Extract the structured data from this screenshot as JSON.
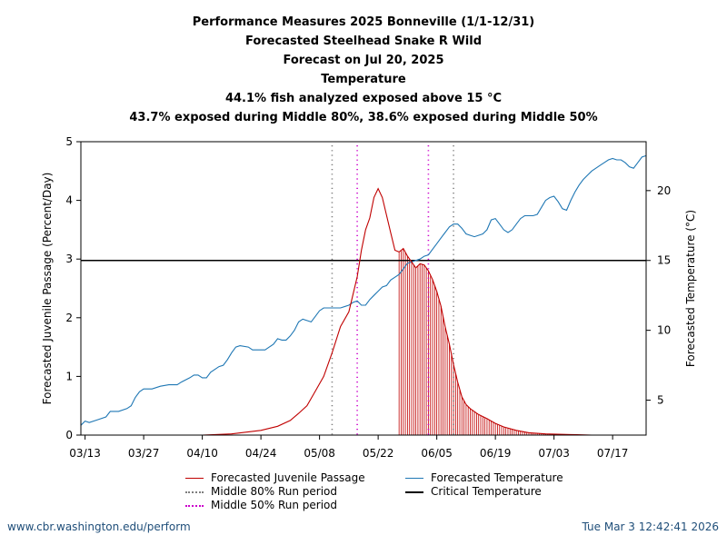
{
  "titles": [
    "Performance Measures 2025 Bonneville (1/1-12/31)",
    "Forecasted Steelhead Snake R Wild",
    "Forecast on Jul 20, 2025",
    "Temperature",
    "44.1% fish analyzed exposed above 15 °C",
    "43.7% exposed during Middle 80%, 38.6% exposed during Middle 50%"
  ],
  "footer": {
    "url": "www.cbr.washington.edu/perform",
    "timestamp": "Tue Mar  3 12:42:41 2026"
  },
  "colors": {
    "passage": "#c00000",
    "temperature": "#1f77b4",
    "middle80": "#7f7f7f",
    "middle50": "#cc00cc",
    "critical": "#000000"
  },
  "chart_data": {
    "type": "line",
    "ylabel": "Forecasted Juvenile Passage (Percent/Day)",
    "y2label": "Forecasted Temperature (°C)",
    "ylim": [
      0,
      5
    ],
    "y2lim": [
      2.5,
      23.5
    ],
    "yticks": [
      0,
      1,
      2,
      3,
      4,
      5
    ],
    "y2ticks": [
      5,
      10,
      15,
      20
    ],
    "xlim": [
      "2025-03-12",
      "2025-07-25"
    ],
    "xticks": [
      "2025-03-13",
      "2025-03-27",
      "2025-04-10",
      "2025-04-24",
      "2025-05-08",
      "2025-05-22",
      "2025-06-05",
      "2025-06-19",
      "2025-07-03",
      "2025-07-17"
    ],
    "xtick_labels": [
      "03/13",
      "03/27",
      "04/10",
      "04/24",
      "05/08",
      "05/22",
      "06/05",
      "06/19",
      "07/03",
      "07/17"
    ],
    "critical_temperature": 15,
    "middle80_run": [
      "2025-05-11",
      "2025-06-09"
    ],
    "middle50_run": [
      "2025-05-17",
      "2025-06-03"
    ],
    "forecast_start": "2025-05-27",
    "series": [
      {
        "name": "Forecasted Juvenile Passage",
        "axis": "left",
        "points": [
          [
            "2025-04-10",
            0.0
          ],
          [
            "2025-04-17",
            0.02
          ],
          [
            "2025-04-24",
            0.08
          ],
          [
            "2025-04-28",
            0.15
          ],
          [
            "2025-05-01",
            0.25
          ],
          [
            "2025-05-03",
            0.37
          ],
          [
            "2025-05-05",
            0.5
          ],
          [
            "2025-05-07",
            0.75
          ],
          [
            "2025-05-09",
            1.0
          ],
          [
            "2025-05-11",
            1.4
          ],
          [
            "2025-05-13",
            1.85
          ],
          [
            "2025-05-15",
            2.1
          ],
          [
            "2025-05-17",
            2.7
          ],
          [
            "2025-05-18",
            3.15
          ],
          [
            "2025-05-19",
            3.5
          ],
          [
            "2025-05-20",
            3.7
          ],
          [
            "2025-05-21",
            4.05
          ],
          [
            "2025-05-22",
            4.2
          ],
          [
            "2025-05-23",
            4.05
          ],
          [
            "2025-05-25",
            3.45
          ],
          [
            "2025-05-26",
            3.15
          ],
          [
            "2025-05-27",
            3.12
          ],
          [
            "2025-05-28",
            3.18
          ],
          [
            "2025-05-29",
            3.05
          ],
          [
            "2025-05-30",
            2.95
          ],
          [
            "2025-05-31",
            2.85
          ],
          [
            "2025-06-01",
            2.92
          ],
          [
            "2025-06-02",
            2.9
          ],
          [
            "2025-06-03",
            2.8
          ],
          [
            "2025-06-04",
            2.65
          ],
          [
            "2025-06-05",
            2.45
          ],
          [
            "2025-06-06",
            2.2
          ],
          [
            "2025-06-07",
            1.85
          ],
          [
            "2025-06-08",
            1.55
          ],
          [
            "2025-06-09",
            1.2
          ],
          [
            "2025-06-10",
            0.9
          ],
          [
            "2025-06-11",
            0.65
          ],
          [
            "2025-06-12",
            0.52
          ],
          [
            "2025-06-13",
            0.45
          ],
          [
            "2025-06-15",
            0.35
          ],
          [
            "2025-06-17",
            0.28
          ],
          [
            "2025-06-19",
            0.2
          ],
          [
            "2025-06-21",
            0.14
          ],
          [
            "2025-06-24",
            0.08
          ],
          [
            "2025-06-27",
            0.04
          ],
          [
            "2025-07-01",
            0.02
          ],
          [
            "2025-07-07",
            0.01
          ],
          [
            "2025-07-12",
            0.0
          ]
        ]
      },
      {
        "name": "Forecasted Temperature",
        "axis": "right",
        "points": [
          [
            "2025-03-12",
            3.2
          ],
          [
            "2025-03-13",
            3.5
          ],
          [
            "2025-03-14",
            3.4
          ],
          [
            "2025-03-16",
            3.6
          ],
          [
            "2025-03-18",
            3.8
          ],
          [
            "2025-03-19",
            4.2
          ],
          [
            "2025-03-21",
            4.2
          ],
          [
            "2025-03-23",
            4.4
          ],
          [
            "2025-03-24",
            4.6
          ],
          [
            "2025-03-25",
            5.2
          ],
          [
            "2025-03-26",
            5.6
          ],
          [
            "2025-03-27",
            5.8
          ],
          [
            "2025-03-29",
            5.8
          ],
          [
            "2025-03-31",
            6.0
          ],
          [
            "2025-04-02",
            6.1
          ],
          [
            "2025-04-04",
            6.1
          ],
          [
            "2025-04-05",
            6.3
          ],
          [
            "2025-04-07",
            6.6
          ],
          [
            "2025-04-08",
            6.8
          ],
          [
            "2025-04-09",
            6.8
          ],
          [
            "2025-04-10",
            6.6
          ],
          [
            "2025-04-11",
            6.6
          ],
          [
            "2025-04-12",
            7.0
          ],
          [
            "2025-04-14",
            7.4
          ],
          [
            "2025-04-15",
            7.5
          ],
          [
            "2025-04-16",
            7.9
          ],
          [
            "2025-04-17",
            8.4
          ],
          [
            "2025-04-18",
            8.8
          ],
          [
            "2025-04-19",
            8.9
          ],
          [
            "2025-04-21",
            8.8
          ],
          [
            "2025-04-22",
            8.6
          ],
          [
            "2025-04-24",
            8.6
          ],
          [
            "2025-04-25",
            8.6
          ],
          [
            "2025-04-26",
            8.8
          ],
          [
            "2025-04-27",
            9.0
          ],
          [
            "2025-04-28",
            9.4
          ],
          [
            "2025-04-29",
            9.3
          ],
          [
            "2025-04-30",
            9.3
          ],
          [
            "2025-05-01",
            9.6
          ],
          [
            "2025-05-02",
            10.0
          ],
          [
            "2025-05-03",
            10.6
          ],
          [
            "2025-05-04",
            10.8
          ],
          [
            "2025-05-05",
            10.7
          ],
          [
            "2025-05-06",
            10.6
          ],
          [
            "2025-05-07",
            11.0
          ],
          [
            "2025-05-08",
            11.4
          ],
          [
            "2025-05-09",
            11.6
          ],
          [
            "2025-05-10",
            11.6
          ],
          [
            "2025-05-13",
            11.6
          ],
          [
            "2025-05-15",
            11.8
          ],
          [
            "2025-05-16",
            12.0
          ],
          [
            "2025-05-17",
            12.1
          ],
          [
            "2025-05-18",
            11.8
          ],
          [
            "2025-05-19",
            11.8
          ],
          [
            "2025-05-20",
            12.2
          ],
          [
            "2025-05-21",
            12.5
          ],
          [
            "2025-05-22",
            12.8
          ],
          [
            "2025-05-23",
            13.1
          ],
          [
            "2025-05-24",
            13.2
          ],
          [
            "2025-05-25",
            13.6
          ],
          [
            "2025-05-26",
            13.8
          ],
          [
            "2025-05-27",
            14.0
          ],
          [
            "2025-05-28",
            14.4
          ],
          [
            "2025-05-29",
            14.8
          ],
          [
            "2025-05-30",
            14.9
          ],
          [
            "2025-06-01",
            15.1
          ],
          [
            "2025-06-02",
            15.3
          ],
          [
            "2025-06-03",
            15.4
          ],
          [
            "2025-06-04",
            15.8
          ],
          [
            "2025-06-05",
            16.2
          ],
          [
            "2025-06-06",
            16.6
          ],
          [
            "2025-06-07",
            17.0
          ],
          [
            "2025-06-08",
            17.4
          ],
          [
            "2025-06-09",
            17.6
          ],
          [
            "2025-06-10",
            17.6
          ],
          [
            "2025-06-11",
            17.3
          ],
          [
            "2025-06-12",
            16.9
          ],
          [
            "2025-06-13",
            16.8
          ],
          [
            "2025-06-14",
            16.7
          ],
          [
            "2025-06-16",
            16.9
          ],
          [
            "2025-06-17",
            17.2
          ],
          [
            "2025-06-18",
            17.9
          ],
          [
            "2025-06-19",
            18.0
          ],
          [
            "2025-06-20",
            17.6
          ],
          [
            "2025-06-21",
            17.2
          ],
          [
            "2025-06-22",
            17.0
          ],
          [
            "2025-06-23",
            17.2
          ],
          [
            "2025-06-24",
            17.6
          ],
          [
            "2025-06-25",
            18.0
          ],
          [
            "2025-06-26",
            18.2
          ],
          [
            "2025-06-28",
            18.2
          ],
          [
            "2025-06-29",
            18.3
          ],
          [
            "2025-06-30",
            18.8
          ],
          [
            "2025-07-01",
            19.3
          ],
          [
            "2025-07-02",
            19.5
          ],
          [
            "2025-07-03",
            19.6
          ],
          [
            "2025-07-04",
            19.2
          ],
          [
            "2025-07-05",
            18.7
          ],
          [
            "2025-07-06",
            18.6
          ],
          [
            "2025-07-07",
            19.3
          ],
          [
            "2025-07-08",
            19.9
          ],
          [
            "2025-07-09",
            20.4
          ],
          [
            "2025-07-10",
            20.8
          ],
          [
            "2025-07-11",
            21.1
          ],
          [
            "2025-07-12",
            21.4
          ],
          [
            "2025-07-13",
            21.6
          ],
          [
            "2025-07-14",
            21.8
          ],
          [
            "2025-07-15",
            22.0
          ],
          [
            "2025-07-16",
            22.2
          ],
          [
            "2025-07-17",
            22.3
          ],
          [
            "2025-07-18",
            22.2
          ],
          [
            "2025-07-19",
            22.2
          ],
          [
            "2025-07-20",
            22.0
          ],
          [
            "2025-07-21",
            21.7
          ],
          [
            "2025-07-22",
            21.6
          ],
          [
            "2025-07-23",
            22.0
          ],
          [
            "2025-07-24",
            22.4
          ],
          [
            "2025-07-25",
            22.5
          ]
        ]
      }
    ],
    "legend": [
      {
        "label": "Forecasted Juvenile Passage",
        "style": "solid",
        "color_key": "passage"
      },
      {
        "label": "Forecasted Temperature",
        "style": "solid",
        "color_key": "temperature"
      },
      {
        "label": "Middle 80% Run period",
        "style": "dotted",
        "color_key": "middle80"
      },
      {
        "label": "Critical Temperature",
        "style": "solid",
        "color_key": "critical"
      },
      {
        "label": "Middle 50% Run period",
        "style": "dotted",
        "color_key": "middle50"
      }
    ]
  }
}
